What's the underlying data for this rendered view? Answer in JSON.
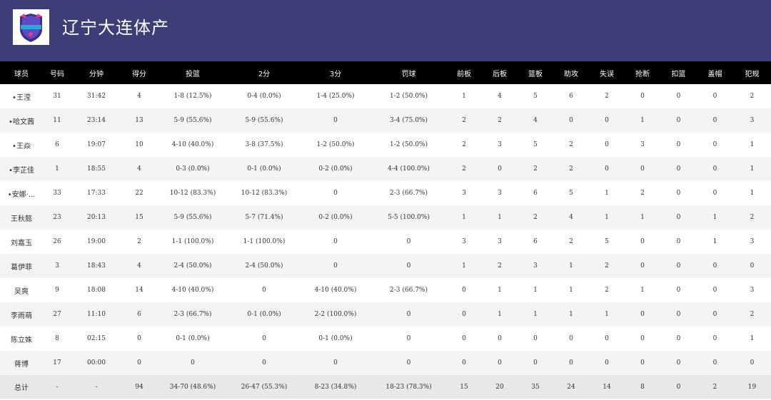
{
  "header": {
    "title": "辽宁大连体产",
    "logo_icon": "team-logo-icon",
    "background": "#3d3e78"
  },
  "table": {
    "columns": [
      "球员",
      "号码",
      "分钟",
      "得分",
      "投篮",
      "2分",
      "3分",
      "罚球",
      "前板",
      "后板",
      "篮板",
      "助攻",
      "失误",
      "抢断",
      "扣篮",
      "盖帽",
      "犯规"
    ],
    "rows": [
      [
        "•王滢",
        "31",
        "31:42",
        "4",
        "1-8 (12.5%)",
        "0-4 (0.0%)",
        "1-4 (25.0%)",
        "1-2 (50.0%)",
        "1",
        "4",
        "5",
        "6",
        "2",
        "0",
        "0",
        "0",
        "2"
      ],
      [
        "•哈文茜",
        "11",
        "23:14",
        "13",
        "5-9 (55.6%)",
        "5-9 (55.6%)",
        "0",
        "3-4 (75.0%)",
        "2",
        "2",
        "4",
        "0",
        "0",
        "1",
        "0",
        "0",
        "3"
      ],
      [
        "•王焱",
        "6",
        "19:07",
        "10",
        "4-10 (40.0%)",
        "3-8 (37.5%)",
        "1-2 (50.0%)",
        "1-2 (50.0%)",
        "2",
        "3",
        "5",
        "2",
        "0",
        "3",
        "0",
        "0",
        "1"
      ],
      [
        "•李芷佳",
        "1",
        "18:55",
        "4",
        "0-3 (0.0%)",
        "0-1 (0.0%)",
        "0-2 (0.0%)",
        "4-4 (100.0%)",
        "2",
        "0",
        "2",
        "2",
        "0",
        "0",
        "0",
        "0",
        "1"
      ],
      [
        "•安娜·...",
        "33",
        "17:33",
        "22",
        "10-12 (83.3%)",
        "10-12 (83.3%)",
        "0",
        "2-3 (66.7%)",
        "3",
        "3",
        "6",
        "5",
        "1",
        "2",
        "0",
        "0",
        "1"
      ],
      [
        "王秋懿",
        "23",
        "20:13",
        "15",
        "5-9 (55.6%)",
        "5-7 (71.4%)",
        "0-2 (0.0%)",
        "5-5 (100.0%)",
        "1",
        "1",
        "2",
        "4",
        "1",
        "1",
        "0",
        "1",
        "2"
      ],
      [
        "刘嘉玉",
        "26",
        "19:00",
        "2",
        "1-1 (100.0%)",
        "1-1 (100.0%)",
        "0",
        "0",
        "3",
        "3",
        "6",
        "2",
        "5",
        "0",
        "0",
        "1",
        "3"
      ],
      [
        "葛伊菲",
        "3",
        "18:43",
        "4",
        "2-4 (50.0%)",
        "2-4 (50.0%)",
        "0",
        "0",
        "1",
        "2",
        "3",
        "1",
        "2",
        "0",
        "0",
        "0",
        "0"
      ],
      [
        "吴爽",
        "9",
        "18:08",
        "14",
        "4-10 (40.0%)",
        "0",
        "4-10 (40.0%)",
        "2-3 (66.7%)",
        "0",
        "1",
        "1",
        "1",
        "2",
        "1",
        "0",
        "0",
        "3"
      ],
      [
        "李雨萌",
        "27",
        "11:10",
        "6",
        "2-3 (66.7%)",
        "0-1 (0.0%)",
        "2-2 (100.0%)",
        "0",
        "0",
        "1",
        "1",
        "1",
        "1",
        "0",
        "0",
        "0",
        "2"
      ],
      [
        "陈立姝",
        "8",
        "02:15",
        "0",
        "0-1 (0.0%)",
        "0",
        "0-1 (0.0%)",
        "0",
        "0",
        "0",
        "0",
        "0",
        "0",
        "0",
        "0",
        "0",
        "1"
      ],
      [
        "蒋博",
        "17",
        "00:00",
        "0",
        "0",
        "0",
        "0",
        "0",
        "0",
        "0",
        "0",
        "0",
        "0",
        "0",
        "0",
        "0",
        "0"
      ]
    ],
    "total": [
      "总计",
      "-",
      "-",
      "94",
      "34-70 (48.6%)",
      "26-47 (55.3%)",
      "8-23 (34.8%)",
      "18-23 (78.3%)",
      "15",
      "20",
      "35",
      "24",
      "14",
      "8",
      "0",
      "2",
      "19"
    ]
  }
}
